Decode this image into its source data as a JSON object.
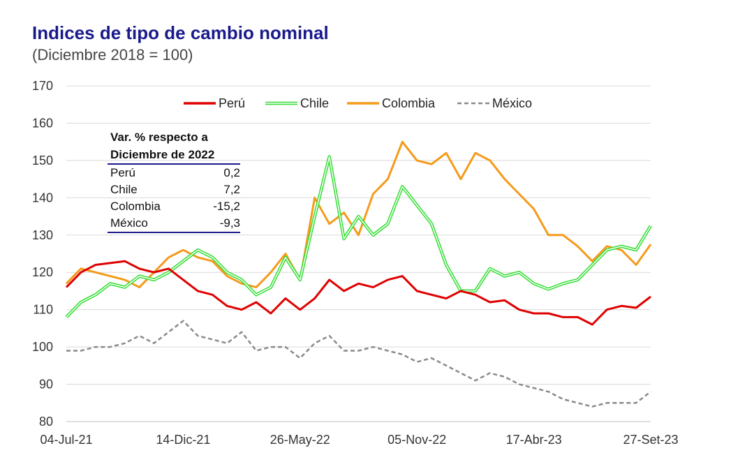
{
  "chart_data": {
    "type": "line",
    "title": "Indices de tipo de cambio nominal",
    "subtitle": "(Diciembre 2018 = 100)",
    "ylim": [
      80,
      170
    ],
    "yticks": [
      80,
      90,
      100,
      110,
      120,
      130,
      140,
      150,
      160,
      170
    ],
    "xtick_labels": [
      "04-Jul-21",
      "14-Dic-21",
      "26-May-22",
      "05-Nov-22",
      "17-Abr-23",
      "27-Set-23"
    ],
    "grid": true,
    "legend_position": "top",
    "x_index": [
      0,
      3,
      6,
      9,
      12,
      15,
      18,
      21,
      24,
      27,
      30,
      33,
      36,
      39,
      42,
      45,
      48,
      51,
      54,
      57,
      60,
      63,
      66,
      69,
      72,
      75,
      78,
      81,
      84,
      87,
      90,
      93,
      96,
      99,
      102,
      105,
      108,
      111,
      114,
      117,
      120
    ],
    "series": [
      {
        "name": "Perú",
        "color": "#e00000",
        "style": "solid",
        "values": [
          116,
          120,
          122,
          122.5,
          123,
          121,
          120,
          121,
          118,
          115,
          114,
          111,
          110,
          112,
          109,
          113,
          110,
          113,
          118,
          115,
          117,
          116,
          118,
          119,
          115,
          114,
          113,
          115,
          114,
          112,
          112.5,
          110,
          109,
          109,
          108,
          108,
          106,
          110,
          111,
          110.5,
          113.5
        ]
      },
      {
        "name": "Chile",
        "color": "#33dd33",
        "style": "double",
        "values": [
          108,
          112,
          114,
          117,
          116,
          119,
          118,
          120,
          123,
          126,
          124,
          120,
          118,
          114,
          116,
          124,
          118,
          135,
          151,
          129,
          135,
          130,
          133,
          143,
          138,
          133,
          122,
          115,
          115,
          121,
          119,
          120,
          117,
          115.5,
          117,
          118,
          122,
          126,
          127,
          126,
          132.5
        ]
      },
      {
        "name": "Colombia",
        "color": "#f59a1a",
        "style": "solid",
        "values": [
          117,
          121,
          120,
          119,
          118,
          116,
          120,
          124,
          126,
          124,
          123,
          119,
          117,
          116,
          120,
          125,
          118,
          140,
          133,
          136,
          130,
          141,
          145,
          155,
          150,
          149,
          152,
          145,
          152,
          150,
          145,
          141,
          137,
          130,
          130,
          127,
          123,
          127,
          126,
          122,
          127.5
        ]
      },
      {
        "name": "México",
        "color": "#8a8a8a",
        "style": "dashed",
        "values": [
          99,
          99,
          100,
          100,
          101,
          103,
          101,
          104,
          107,
          103,
          102,
          101,
          104,
          99,
          100,
          100,
          97,
          101,
          103,
          99,
          99,
          100,
          99,
          98,
          96,
          97,
          95,
          93,
          91,
          93,
          92,
          90,
          89,
          88,
          86,
          85,
          84,
          85,
          85,
          85,
          88
        ]
      }
    ]
  },
  "table": {
    "header_line1": "Var. % respecto a",
    "header_line2": "Diciembre de 2022",
    "rows": [
      {
        "label": "Perú",
        "value": "0,2"
      },
      {
        "label": "Chile",
        "value": "7,2"
      },
      {
        "label": "Colombia",
        "value": "-15,2"
      },
      {
        "label": "México",
        "value": "-9,3"
      }
    ]
  }
}
